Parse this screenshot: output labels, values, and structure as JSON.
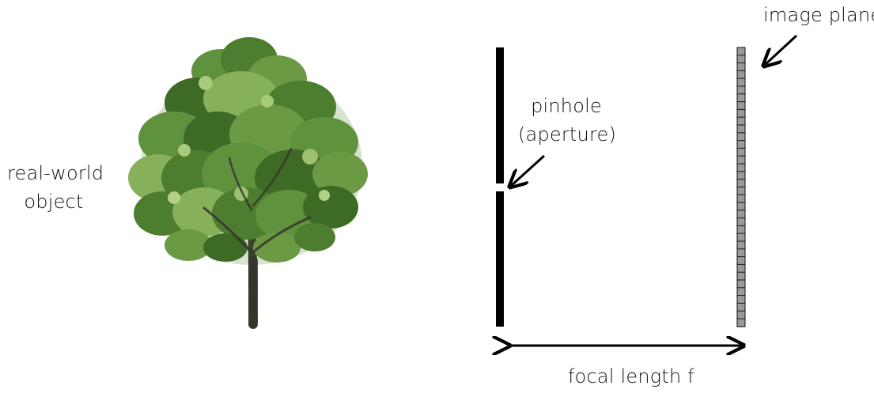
{
  "labels": {
    "object_line1": "real-world",
    "object_line2": "object",
    "pinhole_line1": "pinhole",
    "pinhole_line2": "(aperture)",
    "image_plane": "image plane",
    "focal_length": "focal length f"
  },
  "icons": {
    "object": "tree-icon",
    "pinhole_arrow": "arrow-icon",
    "image_plane_arrow": "arrow-icon",
    "focal_arrow": "double-arrow-icon"
  },
  "colors": {
    "barrier": "#000000",
    "sensor_fill": "#9a9a9a",
    "sensor_grid": "#1a1a1a",
    "foliage_dark": "#3d6a25",
    "foliage_mid": "#58873a",
    "foliage_light": "#86b05a",
    "trunk": "#35352d",
    "text": "#111111"
  }
}
